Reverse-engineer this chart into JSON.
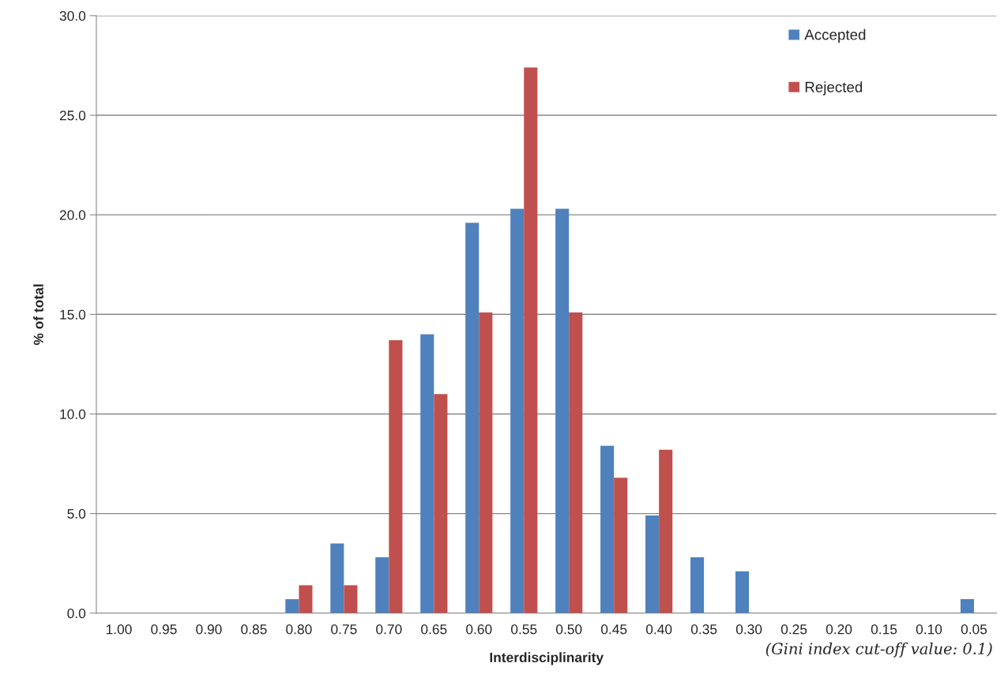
{
  "chart_data": {
    "type": "bar",
    "xlabel": "Interdisciplinarity",
    "ylabel": "% of total",
    "categories": [
      "1.00",
      "0.95",
      "0.90",
      "0.85",
      "0.80",
      "0.75",
      "0.70",
      "0.65",
      "0.60",
      "0.55",
      "0.50",
      "0.45",
      "0.40",
      "0.35",
      "0.30",
      "0.25",
      "0.20",
      "0.15",
      "0.10",
      "0.05"
    ],
    "series": [
      {
        "name": "Accepted",
        "color": "#4f81bd",
        "values": [
          null,
          null,
          null,
          null,
          0.7,
          3.5,
          2.8,
          14.0,
          19.6,
          20.3,
          20.3,
          8.4,
          4.9,
          2.8,
          2.1,
          null,
          null,
          null,
          null,
          0.7
        ]
      },
      {
        "name": "Rejected",
        "color": "#c0504d",
        "values": [
          null,
          null,
          null,
          null,
          1.4,
          1.4,
          13.7,
          11.0,
          15.1,
          27.4,
          15.1,
          6.8,
          8.2,
          null,
          null,
          null,
          null,
          null,
          null,
          null
        ]
      }
    ],
    "ylim": [
      0,
      30
    ],
    "yticks": [
      {
        "value": 0,
        "label": "0.0"
      },
      {
        "value": 5,
        "label": "5.0"
      },
      {
        "value": 10,
        "label": "10.0"
      },
      {
        "value": 15,
        "label": "15.0"
      },
      {
        "value": 20,
        "label": "20.0"
      },
      {
        "value": 25,
        "label": "25.0"
      },
      {
        "value": 30,
        "label": "30.0"
      }
    ],
    "grid": "y",
    "legend": "top right",
    "annotations": [
      "(Gini index cut-off value: 0.1)"
    ]
  }
}
